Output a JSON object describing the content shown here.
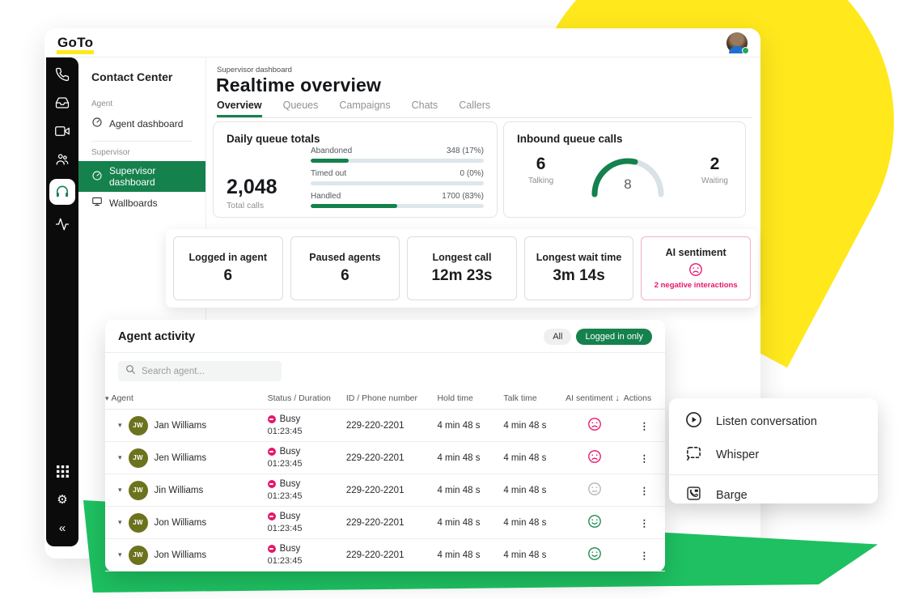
{
  "colors": {
    "brand_green": "#15814D",
    "bright_green": "#1EC061",
    "brand_yellow": "#FFE81C",
    "alert_pink": "#E5176A",
    "rail_black": "#0b0b0b"
  },
  "topbar": {
    "logo_text": "GoTo"
  },
  "rail": {
    "icons": [
      "phone-icon",
      "inbox-icon",
      "video-icon",
      "people-icon",
      "headset-icon",
      "activity-chart-icon"
    ],
    "active_icon": "headset-icon",
    "bottom_icons": [
      "apps-grid-icon",
      "gear-icon",
      "collapse-icon"
    ],
    "collapse_glyph": "«"
  },
  "nav": {
    "title": "Contact Center",
    "sections": [
      {
        "label": "Agent",
        "items": [
          {
            "label": "Agent dashboard",
            "icon": "gauge-icon",
            "active": false
          }
        ]
      },
      {
        "label": "Supervisor",
        "items": [
          {
            "label": "Supervisor dashboard",
            "icon": "gauge-icon",
            "active": true
          },
          {
            "label": "Wallboards",
            "icon": "monitor-icon",
            "active": false
          }
        ]
      }
    ]
  },
  "header": {
    "breadcrumb": "Supervisor dashboard",
    "title": "Realtime overview",
    "tabs": [
      {
        "label": "Overview",
        "active": true
      },
      {
        "label": "Queues",
        "active": false
      },
      {
        "label": "Campaigns",
        "active": false
      },
      {
        "label": "Chats",
        "active": false
      },
      {
        "label": "Callers",
        "active": false
      }
    ]
  },
  "daily_queue": {
    "title": "Daily queue totals",
    "total_value": "2,048",
    "total_label": "Total calls",
    "bars": [
      {
        "label": "Abandoned",
        "value": "348 (17%)",
        "bar_pct": 22
      },
      {
        "label": "Timed out",
        "value": "0 (0%)",
        "bar_pct": 0
      },
      {
        "label": "Handled",
        "value": "1700 (83%)",
        "bar_pct": 50
      }
    ]
  },
  "inbound": {
    "title": "Inbound queue calls",
    "talking_value": "6",
    "talking_label": "Talking",
    "gauge_value": "8",
    "gauge_pct": 57,
    "waiting_value": "2",
    "waiting_label": "Waiting"
  },
  "stat_cards": [
    {
      "label": "Logged in agent",
      "value": "6"
    },
    {
      "label": "Paused agents",
      "value": "6"
    },
    {
      "label": "Longest call",
      "value": "12m 23s"
    },
    {
      "label": "Longest wait time",
      "value": "3m 14s"
    },
    {
      "label": "AI sentiment",
      "sentiment": "sad",
      "note": "2 negative interactions"
    }
  ],
  "agent_activity": {
    "title": "Agent activity",
    "filters": [
      {
        "label": "All",
        "active": false
      },
      {
        "label": "Logged in only",
        "active": true
      }
    ],
    "search_placeholder": "Search agent...",
    "columns": {
      "agent": "Agent",
      "status": "Status / Duration",
      "id": "ID / Phone number",
      "hold": "Hold time",
      "talk": "Talk time",
      "sentiment": "AI sentiment",
      "actions": "Actions"
    },
    "rows": [
      {
        "initials": "JW",
        "name": "Jan Williams",
        "status": "Busy",
        "duration": "01:23:45",
        "phone": "229-220-2201",
        "hold": "4 min 48 s",
        "talk": "4 min 48 s",
        "sentiment": "sad"
      },
      {
        "initials": "JW",
        "name": "Jen Williams",
        "status": "Busy",
        "duration": "01:23:45",
        "phone": "229-220-2201",
        "hold": "4 min 48 s",
        "talk": "4 min 48 s",
        "sentiment": "sad"
      },
      {
        "initials": "JW",
        "name": "Jin Williams",
        "status": "Busy",
        "duration": "01:23:45",
        "phone": "229-220-2201",
        "hold": "4 min 48 s",
        "talk": "4 min 48 s",
        "sentiment": "neutral"
      },
      {
        "initials": "JW",
        "name": "Jon Williams",
        "status": "Busy",
        "duration": "01:23:45",
        "phone": "229-220-2201",
        "hold": "4 min 48 s",
        "talk": "4 min 48 s",
        "sentiment": "happy"
      },
      {
        "initials": "JW",
        "name": "Jon Williams",
        "status": "Busy",
        "duration": "01:23:45",
        "phone": "229-220-2201",
        "hold": "4 min 48 s",
        "talk": "4 min 48 s",
        "sentiment": "happy"
      }
    ]
  },
  "context_menu": {
    "items": [
      {
        "icon": "play-circle-icon",
        "label": "Listen conversation"
      },
      {
        "icon": "whisper-icon",
        "label": "Whisper"
      },
      {
        "icon": "barge-icon",
        "label": "Barge"
      }
    ]
  }
}
